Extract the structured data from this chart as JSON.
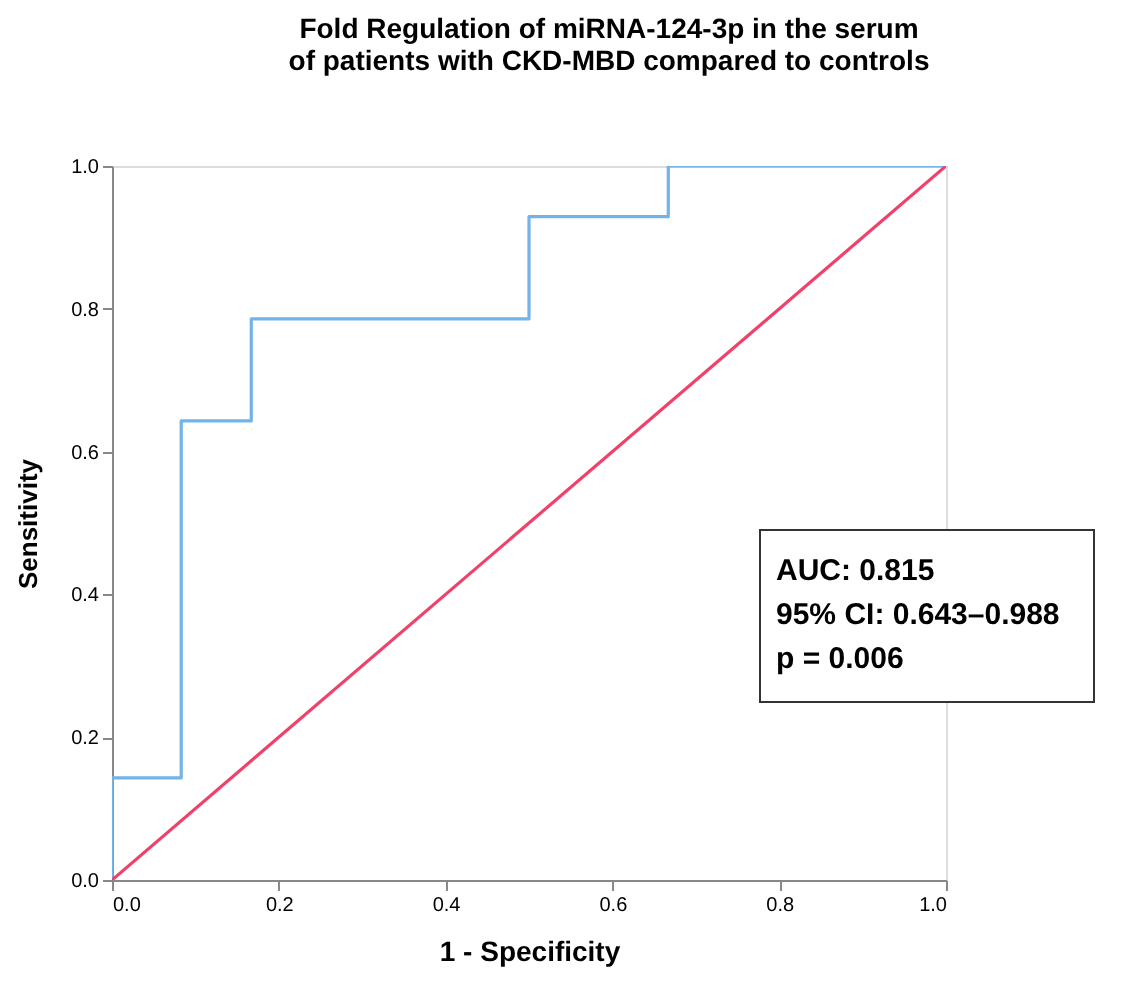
{
  "chart_data": {
    "type": "line",
    "title": "Fold Regulation of miRNA-124-3p in the serum of patients with CKD-MBD compared to controls",
    "xlabel": "1 - Specificity",
    "ylabel": "Sensitivity",
    "series": [
      {
        "color": "#73b3e8",
        "x": [
          0,
          0,
          0.083,
          0.083,
          0.167,
          0.167,
          0.5,
          0.5,
          0.667,
          0.667,
          1
        ],
        "values": [
          0,
          0.143,
          0.143,
          0.643,
          0.643,
          0.786,
          0.786,
          0.929,
          0.929,
          1,
          1
        ]
      },
      {
        "color": "#f0416a",
        "x": [
          0,
          1
        ],
        "values": [
          0,
          1
        ]
      }
    ],
    "xlim": [
      0,
      1
    ],
    "ylim": [
      0,
      1
    ],
    "xticks": [
      {
        "value": 0,
        "label": "0.0"
      },
      {
        "value": 0.2,
        "label": "0.2"
      },
      {
        "value": 0.4,
        "label": "0.4"
      },
      {
        "value": 0.6,
        "label": "0.6"
      },
      {
        "value": 0.8,
        "label": "0.8"
      },
      {
        "value": 1,
        "label": "1.0"
      }
    ],
    "yticks": [
      {
        "value": 0,
        "label": "0.0"
      },
      {
        "value": 0.2,
        "label": "0.2"
      },
      {
        "value": 0.4,
        "label": "0.4"
      },
      {
        "value": 0.6,
        "label": "0.6"
      },
      {
        "value": 0.8,
        "label": "0.8"
      },
      {
        "value": 1,
        "label": "1.0"
      }
    ],
    "grid": false,
    "marker": "none",
    "line_style": "solid",
    "annotations": [
      "AUC: 0.815",
      "95% CI: 0.643–0.988",
      "p = 0.006"
    ]
  }
}
